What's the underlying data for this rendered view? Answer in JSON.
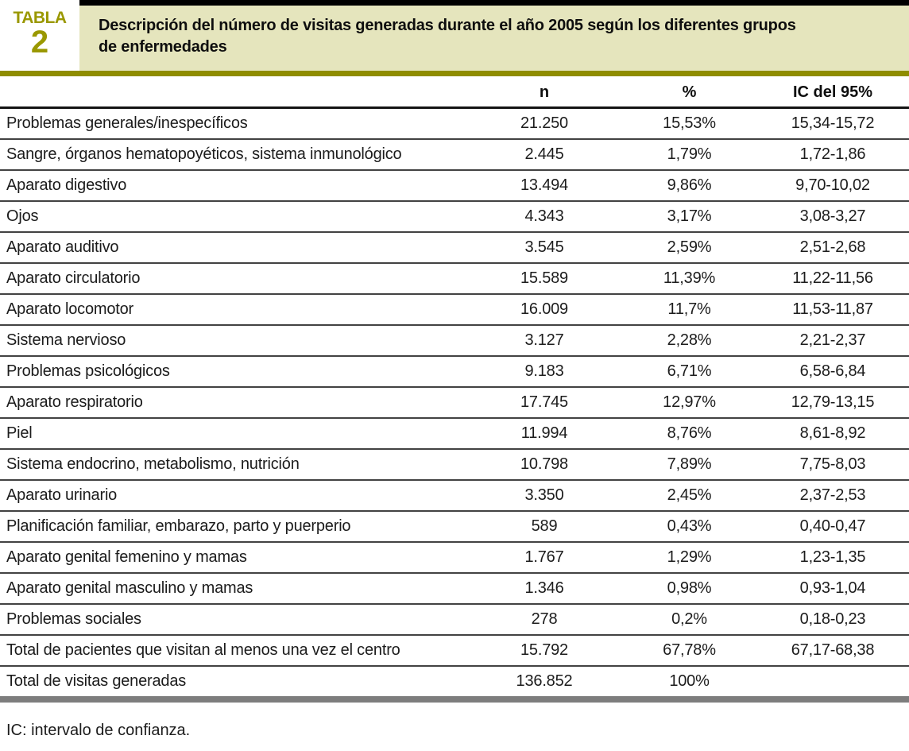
{
  "header": {
    "badge_word": "TABLA",
    "badge_number": "2",
    "title_lines": [
      "Descripción del número de visitas generadas durante el año 2005 según los diferentes grupos",
      "de enfermedades"
    ]
  },
  "table": {
    "columns": [
      "n",
      "%",
      "IC del 95%"
    ],
    "rows": [
      {
        "label": "Problemas generales/inespecíficos",
        "n": "21.250",
        "pct": "15,53%",
        "ic": "15,34-15,72"
      },
      {
        "label": "Sangre, órganos hematopoyéticos, sistema inmunológico",
        "n": "2.445",
        "pct": "1,79%",
        "ic": "1,72-1,86"
      },
      {
        "label": "Aparato digestivo",
        "n": "13.494",
        "pct": "9,86%",
        "ic": "9,70-10,02"
      },
      {
        "label": "Ojos",
        "n": "4.343",
        "pct": "3,17%",
        "ic": "3,08-3,27"
      },
      {
        "label": "Aparato auditivo",
        "n": "3.545",
        "pct": "2,59%",
        "ic": "2,51-2,68"
      },
      {
        "label": "Aparato circulatorio",
        "n": "15.589",
        "pct": "11,39%",
        "ic": "11,22-11,56"
      },
      {
        "label": "Aparato locomotor",
        "n": "16.009",
        "pct": "11,7%",
        "ic": "11,53-11,87"
      },
      {
        "label": "Sistema nervioso",
        "n": "3.127",
        "pct": "2,28%",
        "ic": "2,21-2,37"
      },
      {
        "label": "Problemas psicológicos",
        "n": "9.183",
        "pct": "6,71%",
        "ic": "6,58-6,84"
      },
      {
        "label": "Aparato respiratorio",
        "n": "17.745",
        "pct": "12,97%",
        "ic": "12,79-13,15"
      },
      {
        "label": "Piel",
        "n": "11.994",
        "pct": "8,76%",
        "ic": "8,61-8,92"
      },
      {
        "label": "Sistema endocrino, metabolismo, nutrición",
        "n": "10.798",
        "pct": "7,89%",
        "ic": "7,75-8,03"
      },
      {
        "label": "Aparato urinario",
        "n": "3.350",
        "pct": "2,45%",
        "ic": "2,37-2,53"
      },
      {
        "label": "Planificación familiar, embarazo, parto y puerperio",
        "n": "589",
        "pct": "0,43%",
        "ic": "0,40-0,47"
      },
      {
        "label": "Aparato genital femenino y mamas",
        "n": "1.767",
        "pct": "1,29%",
        "ic": "1,23-1,35"
      },
      {
        "label": "Aparato genital masculino y mamas",
        "n": "1.346",
        "pct": "0,98%",
        "ic": "0,93-1,04"
      },
      {
        "label": "Problemas sociales",
        "n": "278",
        "pct": "0,2%",
        "ic": "0,18-0,23"
      },
      {
        "label": "Total de pacientes que visitan al menos una vez el centro",
        "n": "15.792",
        "pct": "67,78%",
        "ic": "67,17-68,38"
      },
      {
        "label": "Total de visitas generadas",
        "n": "136.852",
        "pct": "100%",
        "ic": ""
      }
    ]
  },
  "footnote": "IC: intervalo de confianza.",
  "colors": {
    "accent_olive_text": "#9a9800",
    "olive_rule": "#8f8d00",
    "title_background": "#e5e5bd",
    "top_strip_black": "#000000",
    "bottom_rule_gray": "#7d7d7d"
  }
}
